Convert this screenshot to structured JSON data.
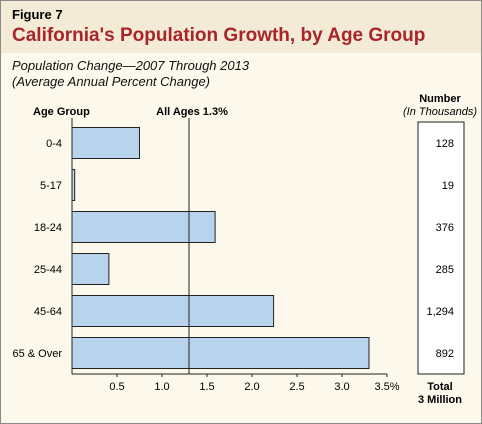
{
  "figure_label": "Figure 7",
  "title": "California's Population Growth, by Age Group",
  "subtitle_line1": "Population Change—2007 Through 2013",
  "subtitle_line2": "(Average Annual Percent Change)",
  "colors": {
    "bar_fill": "#b8d4ec",
    "bar_stroke": "#222222",
    "title": "#a8262b",
    "header_band": "#f3ebd6",
    "background": "#fdf8ec"
  },
  "chart_data": {
    "type": "bar",
    "orientation": "horizontal",
    "category_axis_title": "Age Group",
    "categories": [
      "0-4",
      "5-17",
      "18-24",
      "25-44",
      "45-64",
      "65 & Over"
    ],
    "values": [
      0.75,
      0.03,
      1.59,
      0.41,
      2.24,
      3.3
    ],
    "xlim": [
      0,
      3.5
    ],
    "x_ticks": [
      0.5,
      1.0,
      1.5,
      2.0,
      2.5,
      3.0,
      3.5
    ],
    "x_tick_labels": [
      "0.5",
      "1.0",
      "1.5",
      "2.0",
      "2.5",
      "3.0",
      "3.5%"
    ],
    "reference_line": {
      "value": 1.3,
      "label": "All Ages 1.3%"
    },
    "side_table": {
      "header_line1": "Number",
      "header_line2": "(In Thousands)",
      "values": [
        "128",
        "19",
        "376",
        "285",
        "1,294",
        "892"
      ],
      "total_line1": "Total",
      "total_line2": "3 Million"
    },
    "grid": false,
    "legend": "none"
  }
}
